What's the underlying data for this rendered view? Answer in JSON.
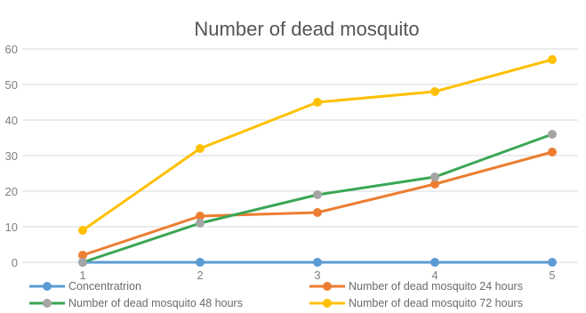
{
  "chart_data": {
    "type": "line",
    "title": "Number of dead mosquito",
    "xlabel": "",
    "ylabel": "",
    "categories": [
      "1",
      "2",
      "3",
      "4",
      "5"
    ],
    "ylim": [
      0,
      60
    ],
    "yticks": [
      "0",
      "10",
      "20",
      "30",
      "40",
      "50",
      "60"
    ],
    "grid": true,
    "legend": "bottom",
    "series": [
      {
        "name": "Concentratrion",
        "color": "#5b9bd5",
        "values": [
          0,
          0,
          0,
          0,
          0
        ]
      },
      {
        "name": "Number of dead mosquito 24 hours",
        "color": "#ed7d31",
        "values": [
          2,
          13,
          14,
          22,
          31
        ]
      },
      {
        "name": "Number of dead mosquito 48 hours",
        "color": "#a5a5a5",
        "line_color": "#3aa655",
        "values": [
          0,
          11,
          19,
          24,
          36
        ]
      },
      {
        "name": "Number of dead mosquito 72 hours",
        "color": "#ffc000",
        "values": [
          9,
          32,
          45,
          48,
          57
        ]
      }
    ]
  }
}
